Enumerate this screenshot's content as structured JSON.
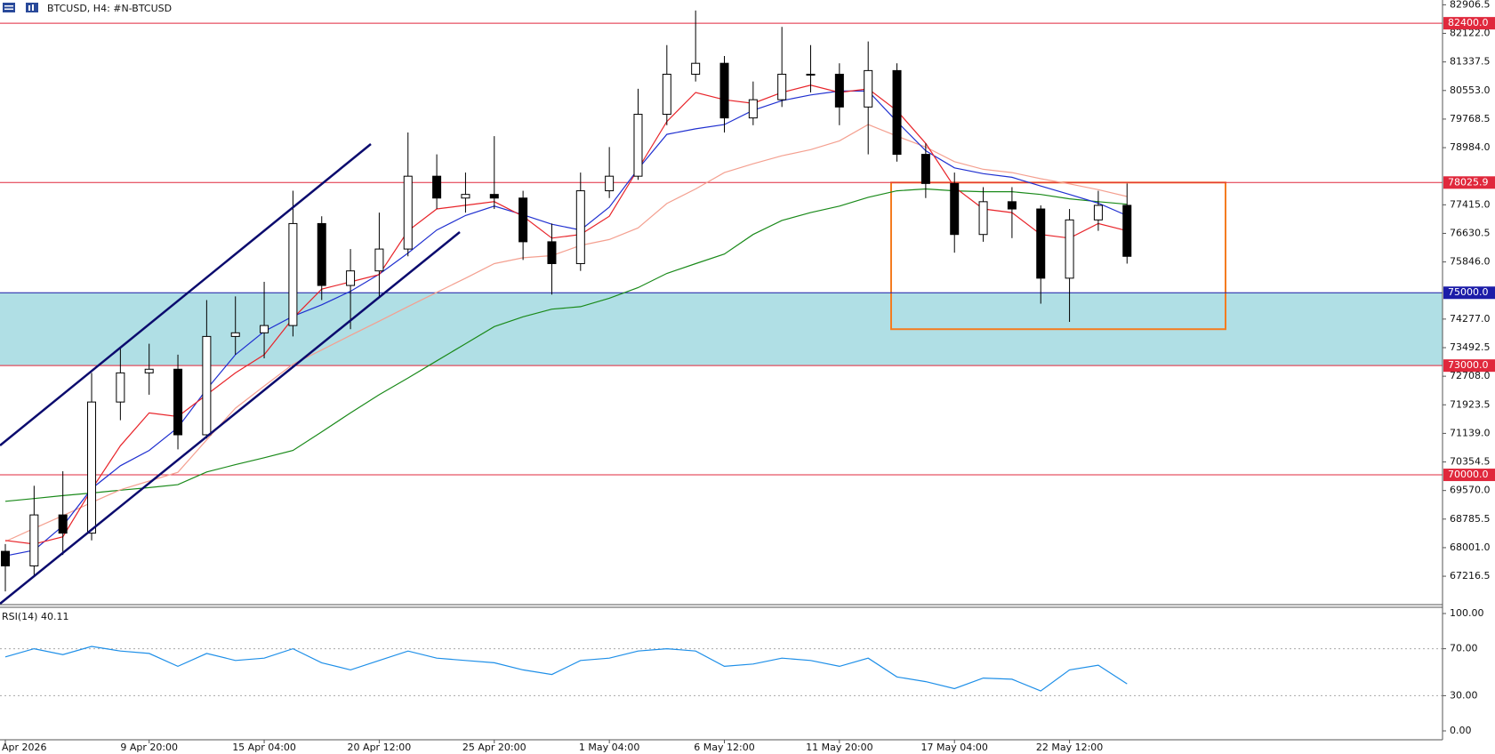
{
  "chart_data": {
    "type": "candlestick",
    "title": "BTCUSD, H4:  #N-BTCUSD",
    "categories": [
      "Apr 2026",
      null,
      null,
      null,
      null,
      "9 Apr 20:00",
      null,
      null,
      null,
      "15 Apr 04:00",
      null,
      null,
      null,
      "20 Apr 12:00",
      null,
      null,
      null,
      "25 Apr 20:00",
      null,
      null,
      null,
      "1 May 04:00",
      null,
      null,
      null,
      "6 May 12:00",
      null,
      null,
      null,
      "11 May 20:00",
      null,
      null,
      null,
      "17 May 04:00",
      null,
      null,
      null,
      "22 May 12:00",
      null,
      null
    ],
    "open": [
      67900,
      67500,
      68900,
      68400,
      72000,
      72800,
      72900,
      71100,
      73800,
      73900,
      74100,
      76900,
      75200,
      75600,
      76200,
      78200,
      77600,
      77700,
      77600,
      76400,
      75800,
      77800,
      78200,
      79900,
      81000,
      81300,
      79800,
      80300,
      81000,
      81000,
      80100,
      81100,
      78800,
      78000,
      76600,
      77500,
      77300,
      75400,
      77000,
      77400
    ],
    "high": [
      68100,
      69700,
      70100,
      72800,
      73500,
      73600,
      73300,
      74800,
      74900,
      75300,
      77800,
      77100,
      76200,
      77200,
      79400,
      78800,
      78300,
      79300,
      77800,
      76900,
      78300,
      79000,
      80600,
      81800,
      82750,
      81500,
      80800,
      82300,
      81800,
      81300,
      81900,
      81300,
      79100,
      78300,
      77900,
      77900,
      77400,
      77300,
      77800,
      78000
    ],
    "low": [
      66800,
      67200,
      67800,
      68200,
      71500,
      72200,
      70700,
      71000,
      73300,
      73200,
      73800,
      74800,
      74000,
      74900,
      76000,
      77300,
      77200,
      77300,
      75900,
      74950,
      75600,
      77600,
      78100,
      79600,
      80800,
      79400,
      79600,
      80100,
      80500,
      79600,
      78800,
      78600,
      77600,
      76100,
      76400,
      76500,
      74700,
      74200,
      76700,
      75800
    ],
    "close": [
      67500,
      68900,
      68400,
      72000,
      72800,
      72900,
      71100,
      73800,
      73900,
      74100,
      76900,
      75200,
      75600,
      76200,
      78200,
      77600,
      77700,
      77600,
      76400,
      75800,
      77800,
      78200,
      79900,
      81000,
      81300,
      79800,
      80300,
      81000,
      81000,
      80100,
      81100,
      78800,
      78000,
      76600,
      77500,
      77300,
      75400,
      77000,
      77400,
      76000
    ],
    "up_color": "#ffffff",
    "down_color": "#000000",
    "ylim": [
      66437,
      83038
    ],
    "yticks": [
      82906.5,
      {
        "value": 82122,
        "label": "82122.0"
      },
      81337.5,
      {
        "value": 80553,
        "label": "80553.0"
      },
      79768.5,
      {
        "value": 78984,
        "label": "78984.0"
      },
      {
        "value": 77415,
        "label": "77415.0"
      },
      76630.5,
      {
        "value": 75846,
        "label": "75846.0"
      },
      {
        "value": 74277,
        "label": "74277.0"
      },
      73492.5,
      {
        "value": 72708,
        "label": "72708.0"
      },
      71923.5,
      {
        "value": 71139,
        "label": "71139.0"
      },
      70354.5,
      {
        "value": 69570,
        "label": "69570.0"
      },
      68785.5,
      {
        "value": 68001,
        "label": "68001.0"
      },
      67216.5
    ],
    "levels": [
      {
        "value": 82400,
        "label": "82400.0",
        "color": "#e0283c"
      },
      {
        "value": 78025.9,
        "label": "78025.9",
        "color": "#e0283c"
      },
      {
        "value": 75000,
        "label": "75000.0",
        "color": "#1c1ca8"
      },
      {
        "value": 73000,
        "label": "73000.0",
        "color": "#e0283c"
      },
      {
        "value": 70000,
        "label": "70000.0",
        "color": "#e0283c"
      }
    ],
    "zone": {
      "from": 73000,
      "to": 75000,
      "color": "#b0dfe5"
    },
    "box": {
      "from": 74000,
      "to": 78025.9,
      "color": "#f47c20"
    },
    "overlays": [
      {
        "color": "#1a8a1a",
        "values": [
          69275,
          69350,
          69430,
          69500,
          69580,
          69650,
          69730,
          70080,
          70280,
          70470,
          70670,
          71180,
          71700,
          72200,
          72660,
          73130,
          73600,
          74070,
          74340,
          74550,
          74617,
          74850,
          75140,
          75530,
          75800,
          76064,
          76600,
          76985,
          77200,
          77380,
          77620,
          77800,
          77850,
          77800,
          77775,
          77775,
          77700,
          77580,
          77500,
          77430
        ]
      },
      {
        "color": "#f4a090",
        "values": [
          68170,
          68530,
          68880,
          69240,
          69590,
          69830,
          70070,
          70960,
          71830,
          72440,
          73038,
          73430,
          73830,
          74220,
          74620,
          75010,
          75400,
          75800,
          75960,
          76020,
          76300,
          76460,
          76780,
          77450,
          77850,
          78300,
          78540,
          78760,
          78930,
          79170,
          79617,
          79300,
          79000,
          78600,
          78390,
          78300,
          78130,
          77990,
          77830,
          77643
        ]
      },
      {
        "color": "#2030d0",
        "values": [
          67775,
          67930,
          68600,
          69620,
          70250,
          70670,
          71300,
          72350,
          73300,
          73940,
          74354,
          74670,
          75040,
          75510,
          76090,
          76722,
          77120,
          77380,
          77140,
          76880,
          76722,
          77350,
          78400,
          79350,
          79500,
          79617,
          80010,
          80275,
          80430,
          80538,
          80538,
          79700,
          78900,
          78430,
          78270,
          78170,
          77930,
          77700,
          77460,
          77117
        ]
      },
      {
        "color": "#e8242a",
        "values": [
          68200,
          68100,
          68300,
          69600,
          70800,
          71700,
          71600,
          72200,
          72800,
          73300,
          74300,
          75100,
          75300,
          75500,
          76700,
          77300,
          77400,
          77500,
          77100,
          76500,
          76600,
          77100,
          78400,
          79700,
          80500,
          80300,
          80200,
          80500,
          80700,
          80500,
          80600,
          80000,
          79100,
          77900,
          77300,
          77200,
          76600,
          76500,
          76900,
          76700
        ]
      }
    ],
    "rsi": {
      "label": "RSI(14) 40.11",
      "color": "#1e8fe8",
      "values": [
        63,
        70,
        65,
        72,
        68,
        66,
        55,
        66,
        60,
        62,
        70,
        58,
        52,
        60,
        68,
        62,
        60,
        58,
        52,
        48,
        60,
        62,
        68,
        70,
        68,
        55,
        57,
        62,
        60,
        55,
        62,
        46,
        42,
        36,
        45,
        44,
        34,
        52,
        56,
        40.11
      ],
      "ylim": [
        0,
        100
      ],
      "yticks": [
        {
          "value": 100,
          "label": "100.00"
        },
        {
          "value": 70,
          "label": "70.00"
        },
        {
          "value": 30,
          "label": "30.00"
        },
        {
          "value": 0,
          "label": "0.00"
        }
      ]
    }
  }
}
